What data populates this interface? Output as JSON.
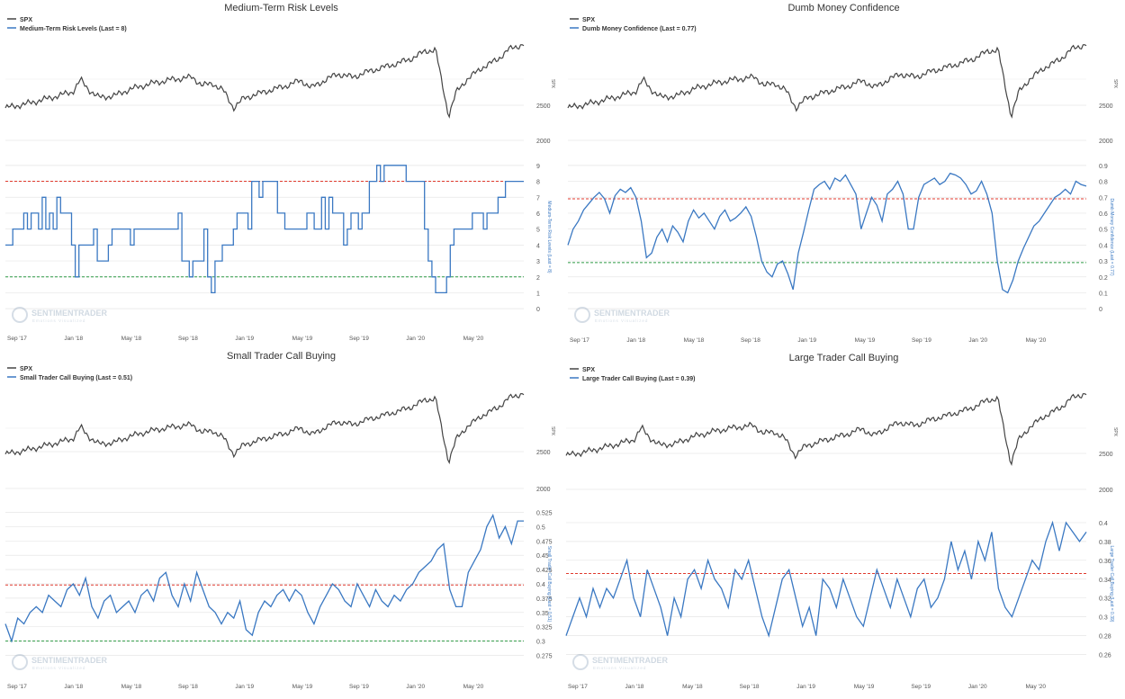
{
  "colors": {
    "spx": "#444444",
    "indicator": "#3a78c2",
    "upper_band": "#e03a2e",
    "lower_band": "#2e9a45",
    "grid": "#e6e6e6",
    "axis_text": "#555555"
  },
  "watermark": {
    "brand": "SENTIMENTRADER",
    "tagline": "Emotions Visualized"
  },
  "x_ticks": [
    "Sep '17",
    "Jan '18",
    "May '18",
    "Sep '18",
    "Jan '19",
    "May '19",
    "Sep '19",
    "Jan '20",
    "May '20"
  ],
  "chart_data": [
    {
      "type": "line",
      "title": "Medium-Term Risk Levels",
      "legend": [
        {
          "label": "SPX"
        },
        {
          "label": "Medium-Term Risk Levels (Last = 8)"
        }
      ],
      "spx_axis": {
        "title": "SPX",
        "ticks": [
          2500,
          2000
        ]
      },
      "indicator_axis": {
        "title": "Medium-Term Risk Levels (Last = 8)",
        "range": [
          -0.5,
          9.5
        ],
        "ticks": [
          0,
          1,
          2,
          3,
          4,
          5,
          6,
          7,
          8,
          9
        ],
        "labels": [
          "0",
          "1",
          "2",
          "3",
          "4",
          "5",
          "6",
          "7",
          "8",
          "9"
        ]
      },
      "bands": {
        "upper": 8,
        "lower": 2
      },
      "indicator_values": [
        4,
        4,
        5,
        5,
        5,
        6,
        5,
        6,
        6,
        5,
        7,
        5,
        6,
        5,
        7,
        6,
        6,
        6,
        4,
        2,
        4,
        4,
        4,
        4,
        5,
        3,
        3,
        3,
        4,
        5,
        5,
        5,
        5,
        5,
        4,
        5,
        5,
        5,
        5,
        5,
        5,
        5,
        5,
        5,
        5,
        5,
        5,
        6,
        3,
        3,
        2,
        3,
        3,
        3,
        5,
        2,
        1,
        3,
        3,
        4,
        4,
        4,
        5,
        6,
        6,
        6,
        5,
        8,
        8,
        7,
        8,
        8,
        8,
        8,
        6,
        6,
        5,
        5,
        5,
        5,
        5,
        5,
        6,
        6,
        5,
        5,
        7,
        5,
        7,
        6,
        6,
        6,
        4,
        5,
        6,
        6,
        5,
        6,
        6,
        8,
        8,
        9,
        8,
        9,
        9,
        9,
        9,
        9,
        9,
        8,
        8,
        8,
        8,
        8,
        5,
        3,
        2,
        1,
        1,
        1,
        2,
        4,
        5,
        5,
        5,
        5,
        5,
        6,
        6,
        6,
        5,
        6,
        6,
        6,
        7,
        7,
        8,
        8,
        8,
        8,
        8,
        8
      ]
    },
    {
      "type": "line",
      "title": "Dumb Money Confidence",
      "legend": [
        {
          "label": "SPX"
        },
        {
          "label": "Dumb Money Confidence (Last = 0.77)"
        }
      ],
      "spx_axis": {
        "title": "SPX",
        "ticks": [
          2500,
          2000
        ]
      },
      "indicator_axis": {
        "title": "Dumb Money Confidence (Last = 0.77)",
        "range": [
          -0.05,
          0.95
        ],
        "ticks": [
          0,
          0.1,
          0.2,
          0.3,
          0.4,
          0.5,
          0.6,
          0.7,
          0.8,
          0.9
        ],
        "labels": [
          "0",
          "0.1",
          "0.2",
          "0.3",
          "0.4",
          "0.5",
          "0.6",
          "0.7",
          "0.8",
          "0.9"
        ]
      },
      "bands": {
        "upper": 0.69,
        "lower": 0.29
      },
      "indicator_values": [
        0.4,
        0.5,
        0.55,
        0.62,
        0.66,
        0.7,
        0.73,
        0.69,
        0.6,
        0.71,
        0.75,
        0.73,
        0.76,
        0.7,
        0.55,
        0.32,
        0.35,
        0.45,
        0.5,
        0.42,
        0.52,
        0.48,
        0.42,
        0.55,
        0.62,
        0.57,
        0.6,
        0.55,
        0.5,
        0.58,
        0.62,
        0.55,
        0.57,
        0.6,
        0.64,
        0.58,
        0.45,
        0.3,
        0.23,
        0.2,
        0.28,
        0.3,
        0.22,
        0.12,
        0.35,
        0.48,
        0.62,
        0.75,
        0.78,
        0.8,
        0.75,
        0.82,
        0.8,
        0.84,
        0.78,
        0.72,
        0.5,
        0.6,
        0.7,
        0.65,
        0.55,
        0.72,
        0.75,
        0.8,
        0.72,
        0.5,
        0.5,
        0.7,
        0.78,
        0.8,
        0.82,
        0.78,
        0.8,
        0.85,
        0.84,
        0.82,
        0.78,
        0.72,
        0.74,
        0.8,
        0.72,
        0.6,
        0.3,
        0.12,
        0.1,
        0.18,
        0.3,
        0.38,
        0.45,
        0.52,
        0.55,
        0.6,
        0.65,
        0.7,
        0.72,
        0.75,
        0.72,
        0.8,
        0.78,
        0.77
      ]
    },
    {
      "type": "line",
      "title": "Small Trader Call Buying",
      "legend": [
        {
          "label": "SPX"
        },
        {
          "label": "Small Trader Call Buying (Last = 0.51)"
        }
      ],
      "spx_axis": {
        "title": "SPX",
        "ticks": [
          2500,
          2000
        ]
      },
      "indicator_axis": {
        "title": "Small Trader Call Buying (Last = 0.51)",
        "range": [
          0.26,
          0.54
        ],
        "ticks": [
          0.275,
          0.3,
          0.325,
          0.35,
          0.375,
          0.4,
          0.425,
          0.45,
          0.475,
          0.5,
          0.525
        ],
        "labels": [
          "0.275",
          "0.3",
          "0.325",
          "0.35",
          "0.375",
          "0.4",
          "0.425",
          "0.45",
          "0.475",
          "0.5",
          "0.525"
        ]
      },
      "bands": {
        "upper": 0.398,
        "lower": 0.3
      },
      "indicator_values": [
        0.33,
        0.3,
        0.34,
        0.33,
        0.35,
        0.36,
        0.35,
        0.38,
        0.37,
        0.36,
        0.39,
        0.4,
        0.38,
        0.41,
        0.36,
        0.34,
        0.37,
        0.38,
        0.35,
        0.36,
        0.37,
        0.35,
        0.38,
        0.39,
        0.37,
        0.41,
        0.42,
        0.38,
        0.36,
        0.4,
        0.37,
        0.42,
        0.39,
        0.36,
        0.35,
        0.33,
        0.35,
        0.34,
        0.37,
        0.32,
        0.31,
        0.35,
        0.37,
        0.36,
        0.38,
        0.39,
        0.37,
        0.39,
        0.38,
        0.35,
        0.33,
        0.36,
        0.38,
        0.4,
        0.39,
        0.37,
        0.36,
        0.4,
        0.38,
        0.36,
        0.39,
        0.37,
        0.36,
        0.38,
        0.37,
        0.39,
        0.4,
        0.42,
        0.43,
        0.44,
        0.46,
        0.47,
        0.39,
        0.36,
        0.36,
        0.42,
        0.44,
        0.46,
        0.5,
        0.52,
        0.48,
        0.5,
        0.47,
        0.51,
        0.51
      ]
    },
    {
      "type": "line",
      "title": "Large Trader Call Buying",
      "legend": [
        {
          "label": "SPX"
        },
        {
          "label": "Large Trader Call Buying (Last = 0.39)"
        }
      ],
      "spx_axis": {
        "title": "SPX",
        "ticks": [
          2500,
          2000
        ]
      },
      "indicator_axis": {
        "title": "Large Trader Call Buying (Last = 0.39)",
        "range": [
          0.25,
          0.42
        ],
        "ticks": [
          0.26,
          0.28,
          0.3,
          0.32,
          0.34,
          0.36,
          0.38,
          0.4
        ],
        "labels": [
          "0.26",
          "0.28",
          "0.3",
          "0.32",
          "0.34",
          "0.36",
          "0.38",
          "0.4"
        ]
      },
      "bands": {
        "upper": 0.346,
        "lower": null
      },
      "indicator_values": [
        0.28,
        0.3,
        0.32,
        0.3,
        0.33,
        0.31,
        0.33,
        0.32,
        0.34,
        0.36,
        0.32,
        0.3,
        0.35,
        0.33,
        0.31,
        0.28,
        0.32,
        0.3,
        0.34,
        0.35,
        0.33,
        0.36,
        0.34,
        0.33,
        0.31,
        0.35,
        0.34,
        0.36,
        0.33,
        0.3,
        0.28,
        0.31,
        0.34,
        0.35,
        0.32,
        0.29,
        0.31,
        0.28,
        0.34,
        0.33,
        0.31,
        0.34,
        0.32,
        0.3,
        0.29,
        0.32,
        0.35,
        0.33,
        0.31,
        0.34,
        0.32,
        0.3,
        0.33,
        0.34,
        0.31,
        0.32,
        0.34,
        0.38,
        0.35,
        0.37,
        0.34,
        0.38,
        0.36,
        0.39,
        0.33,
        0.31,
        0.3,
        0.32,
        0.34,
        0.36,
        0.35,
        0.38,
        0.4,
        0.37,
        0.4,
        0.39,
        0.38,
        0.39
      ]
    }
  ]
}
